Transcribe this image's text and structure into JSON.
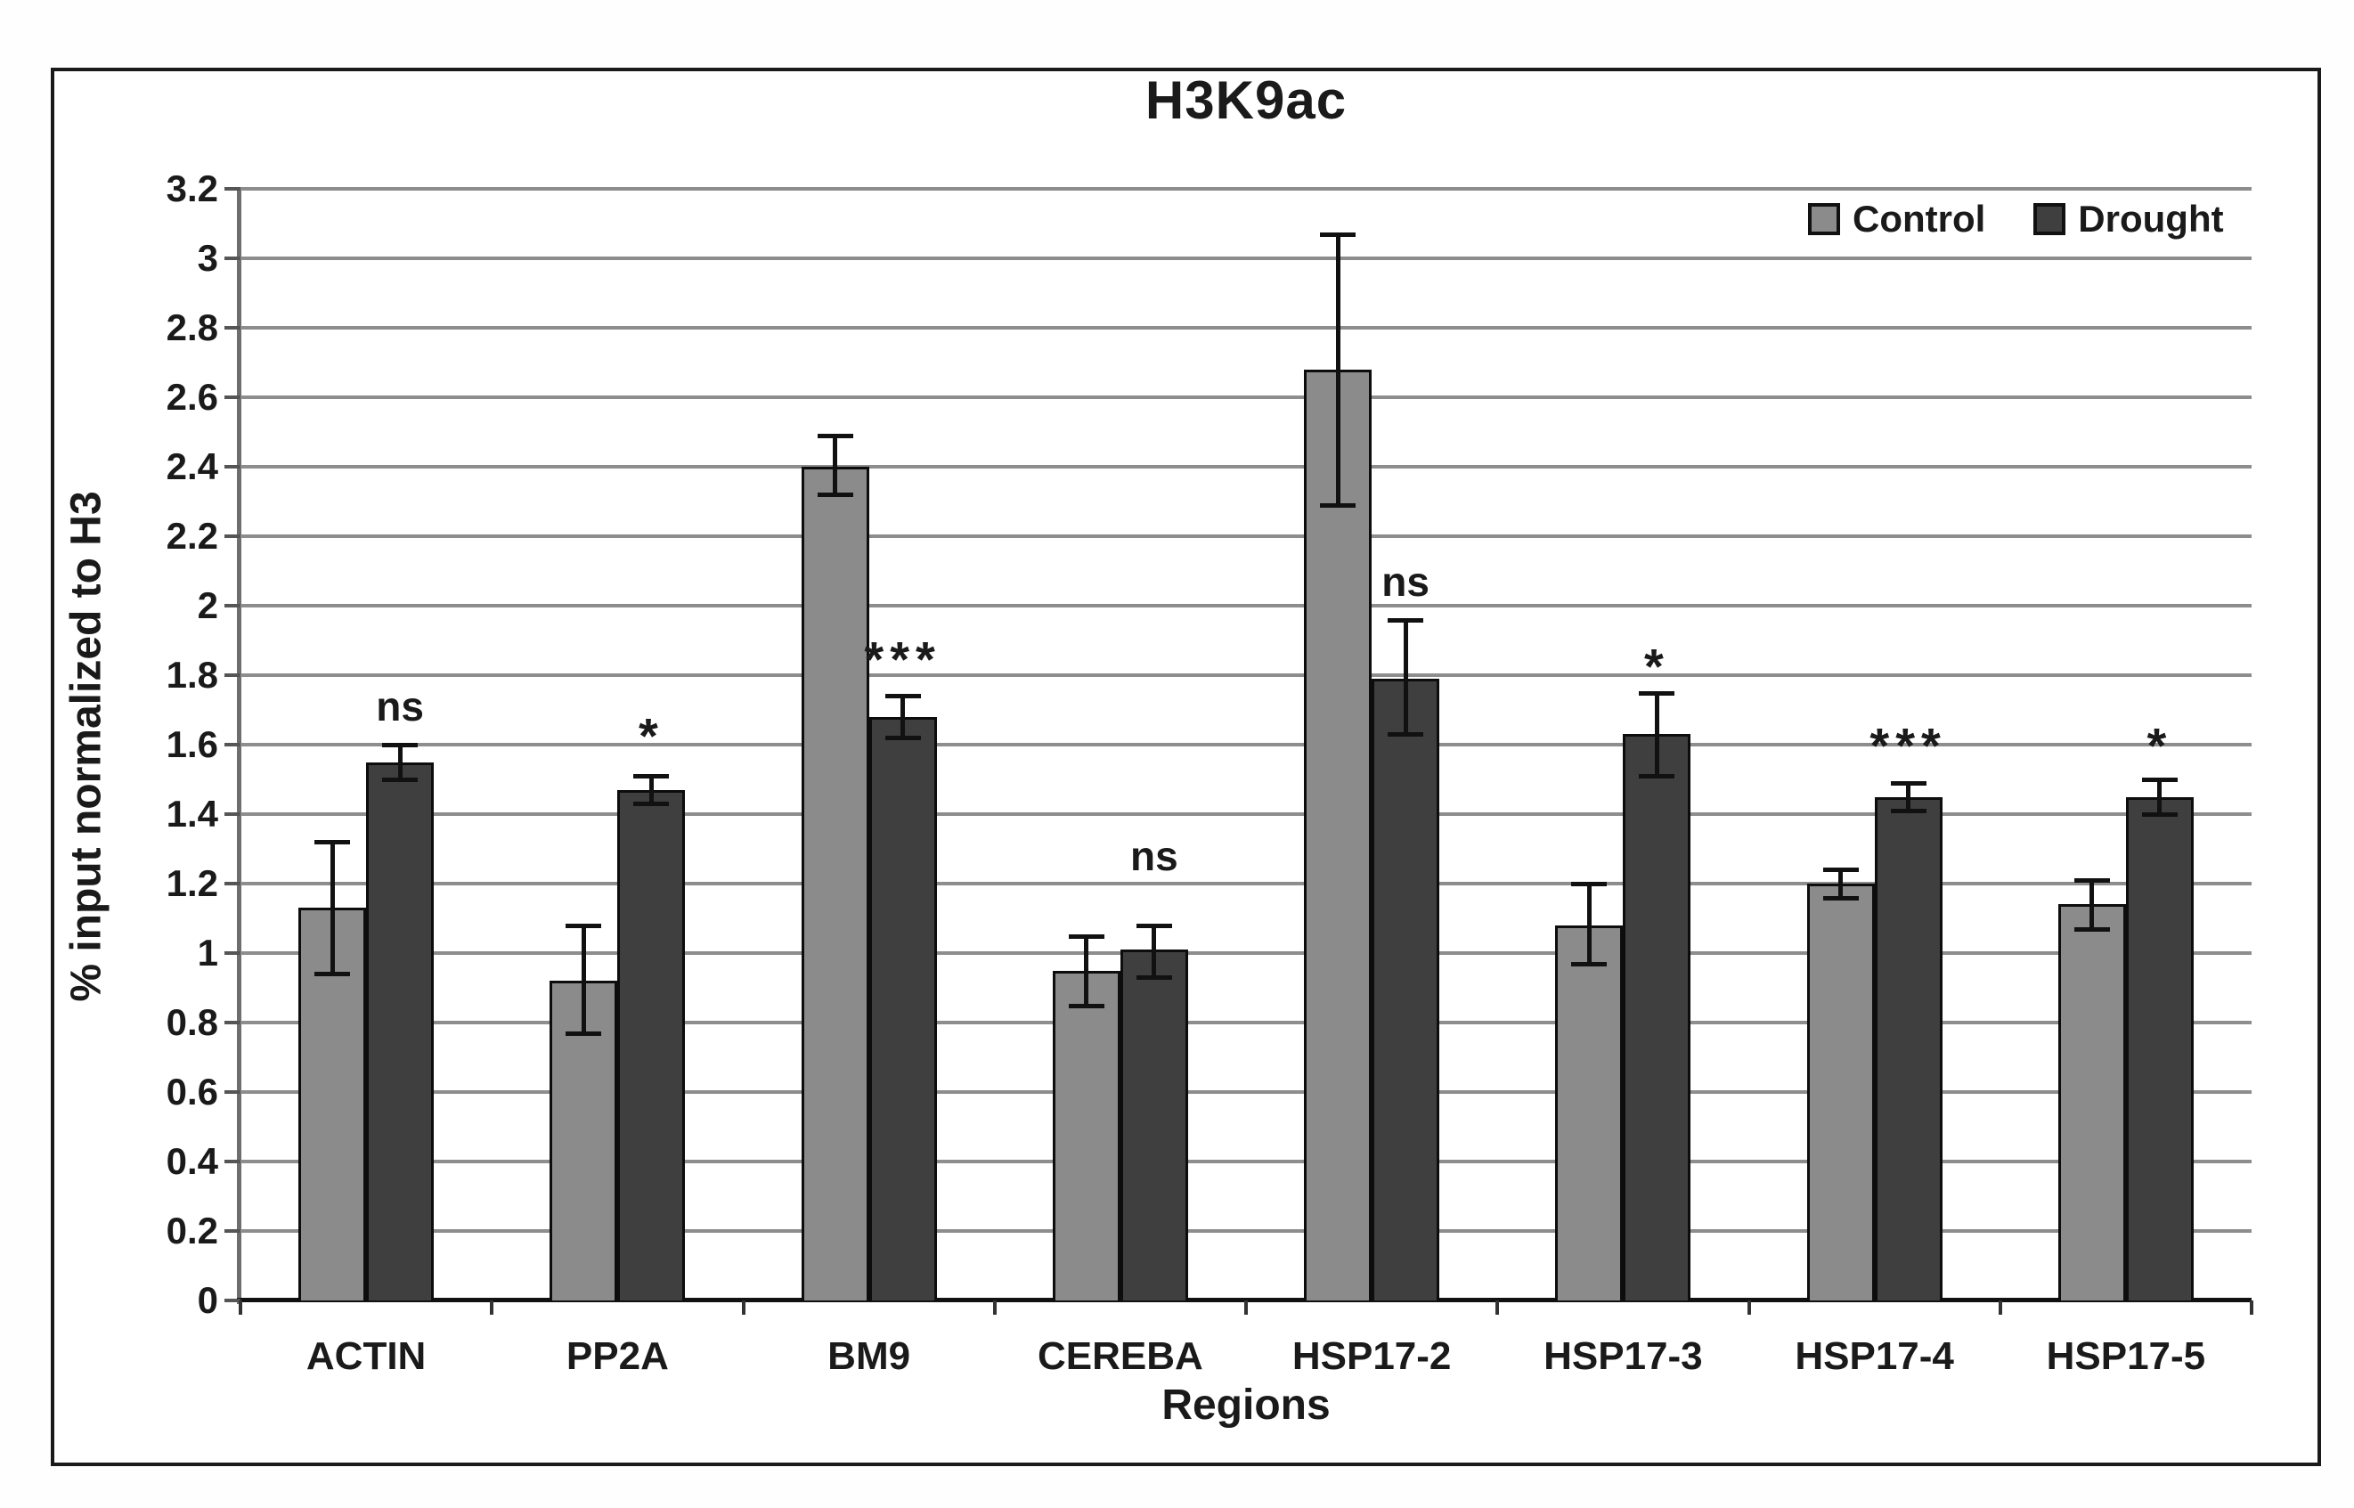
{
  "chart_data": {
    "type": "bar",
    "title": "H3K9ac",
    "xlabel": "Regions",
    "ylabel": "% input normalized to H3",
    "ylim": [
      0,
      3.2
    ],
    "ytick_step": 0.2,
    "grid": true,
    "legend_position": "top-right",
    "categories": [
      "ACTIN",
      "PP2A",
      "BM9",
      "CEREBA",
      "HSP17-2",
      "HSP17-3",
      "HSP17-4",
      "HSP17-5"
    ],
    "series": [
      {
        "name": "Control",
        "color": "#8b8b8b",
        "values": [
          1.13,
          0.92,
          2.4,
          0.95,
          2.68,
          1.08,
          1.2,
          1.14
        ],
        "error_low": [
          0.19,
          0.15,
          0.08,
          0.1,
          0.39,
          0.11,
          0.04,
          0.07
        ],
        "error_high": [
          0.19,
          0.16,
          0.09,
          0.1,
          0.39,
          0.12,
          0.04,
          0.07
        ]
      },
      {
        "name": "Drought",
        "color": "#3f3f3f",
        "values": [
          1.55,
          1.47,
          1.68,
          1.01,
          1.79,
          1.63,
          1.45,
          1.45
        ],
        "error_low": [
          0.05,
          0.04,
          0.06,
          0.08,
          0.16,
          0.12,
          0.04,
          0.05
        ],
        "error_high": [
          0.05,
          0.04,
          0.06,
          0.07,
          0.17,
          0.12,
          0.04,
          0.05
        ]
      }
    ],
    "significance": [
      {
        "category": "ACTIN",
        "label": "ns",
        "y": 1.71
      },
      {
        "category": "PP2A",
        "label": "*",
        "y": 1.66
      },
      {
        "category": "BM9",
        "label": "***",
        "y": 1.88
      },
      {
        "category": "CEREBA",
        "label": "ns",
        "y": 1.28
      },
      {
        "category": "HSP17-2",
        "label": "ns",
        "y": 2.07
      },
      {
        "category": "HSP17-3",
        "label": "*",
        "y": 1.86
      },
      {
        "category": "HSP17-4",
        "label": "***",
        "y": 1.63
      },
      {
        "category": "HSP17-5",
        "label": "*",
        "y": 1.63
      }
    ]
  }
}
